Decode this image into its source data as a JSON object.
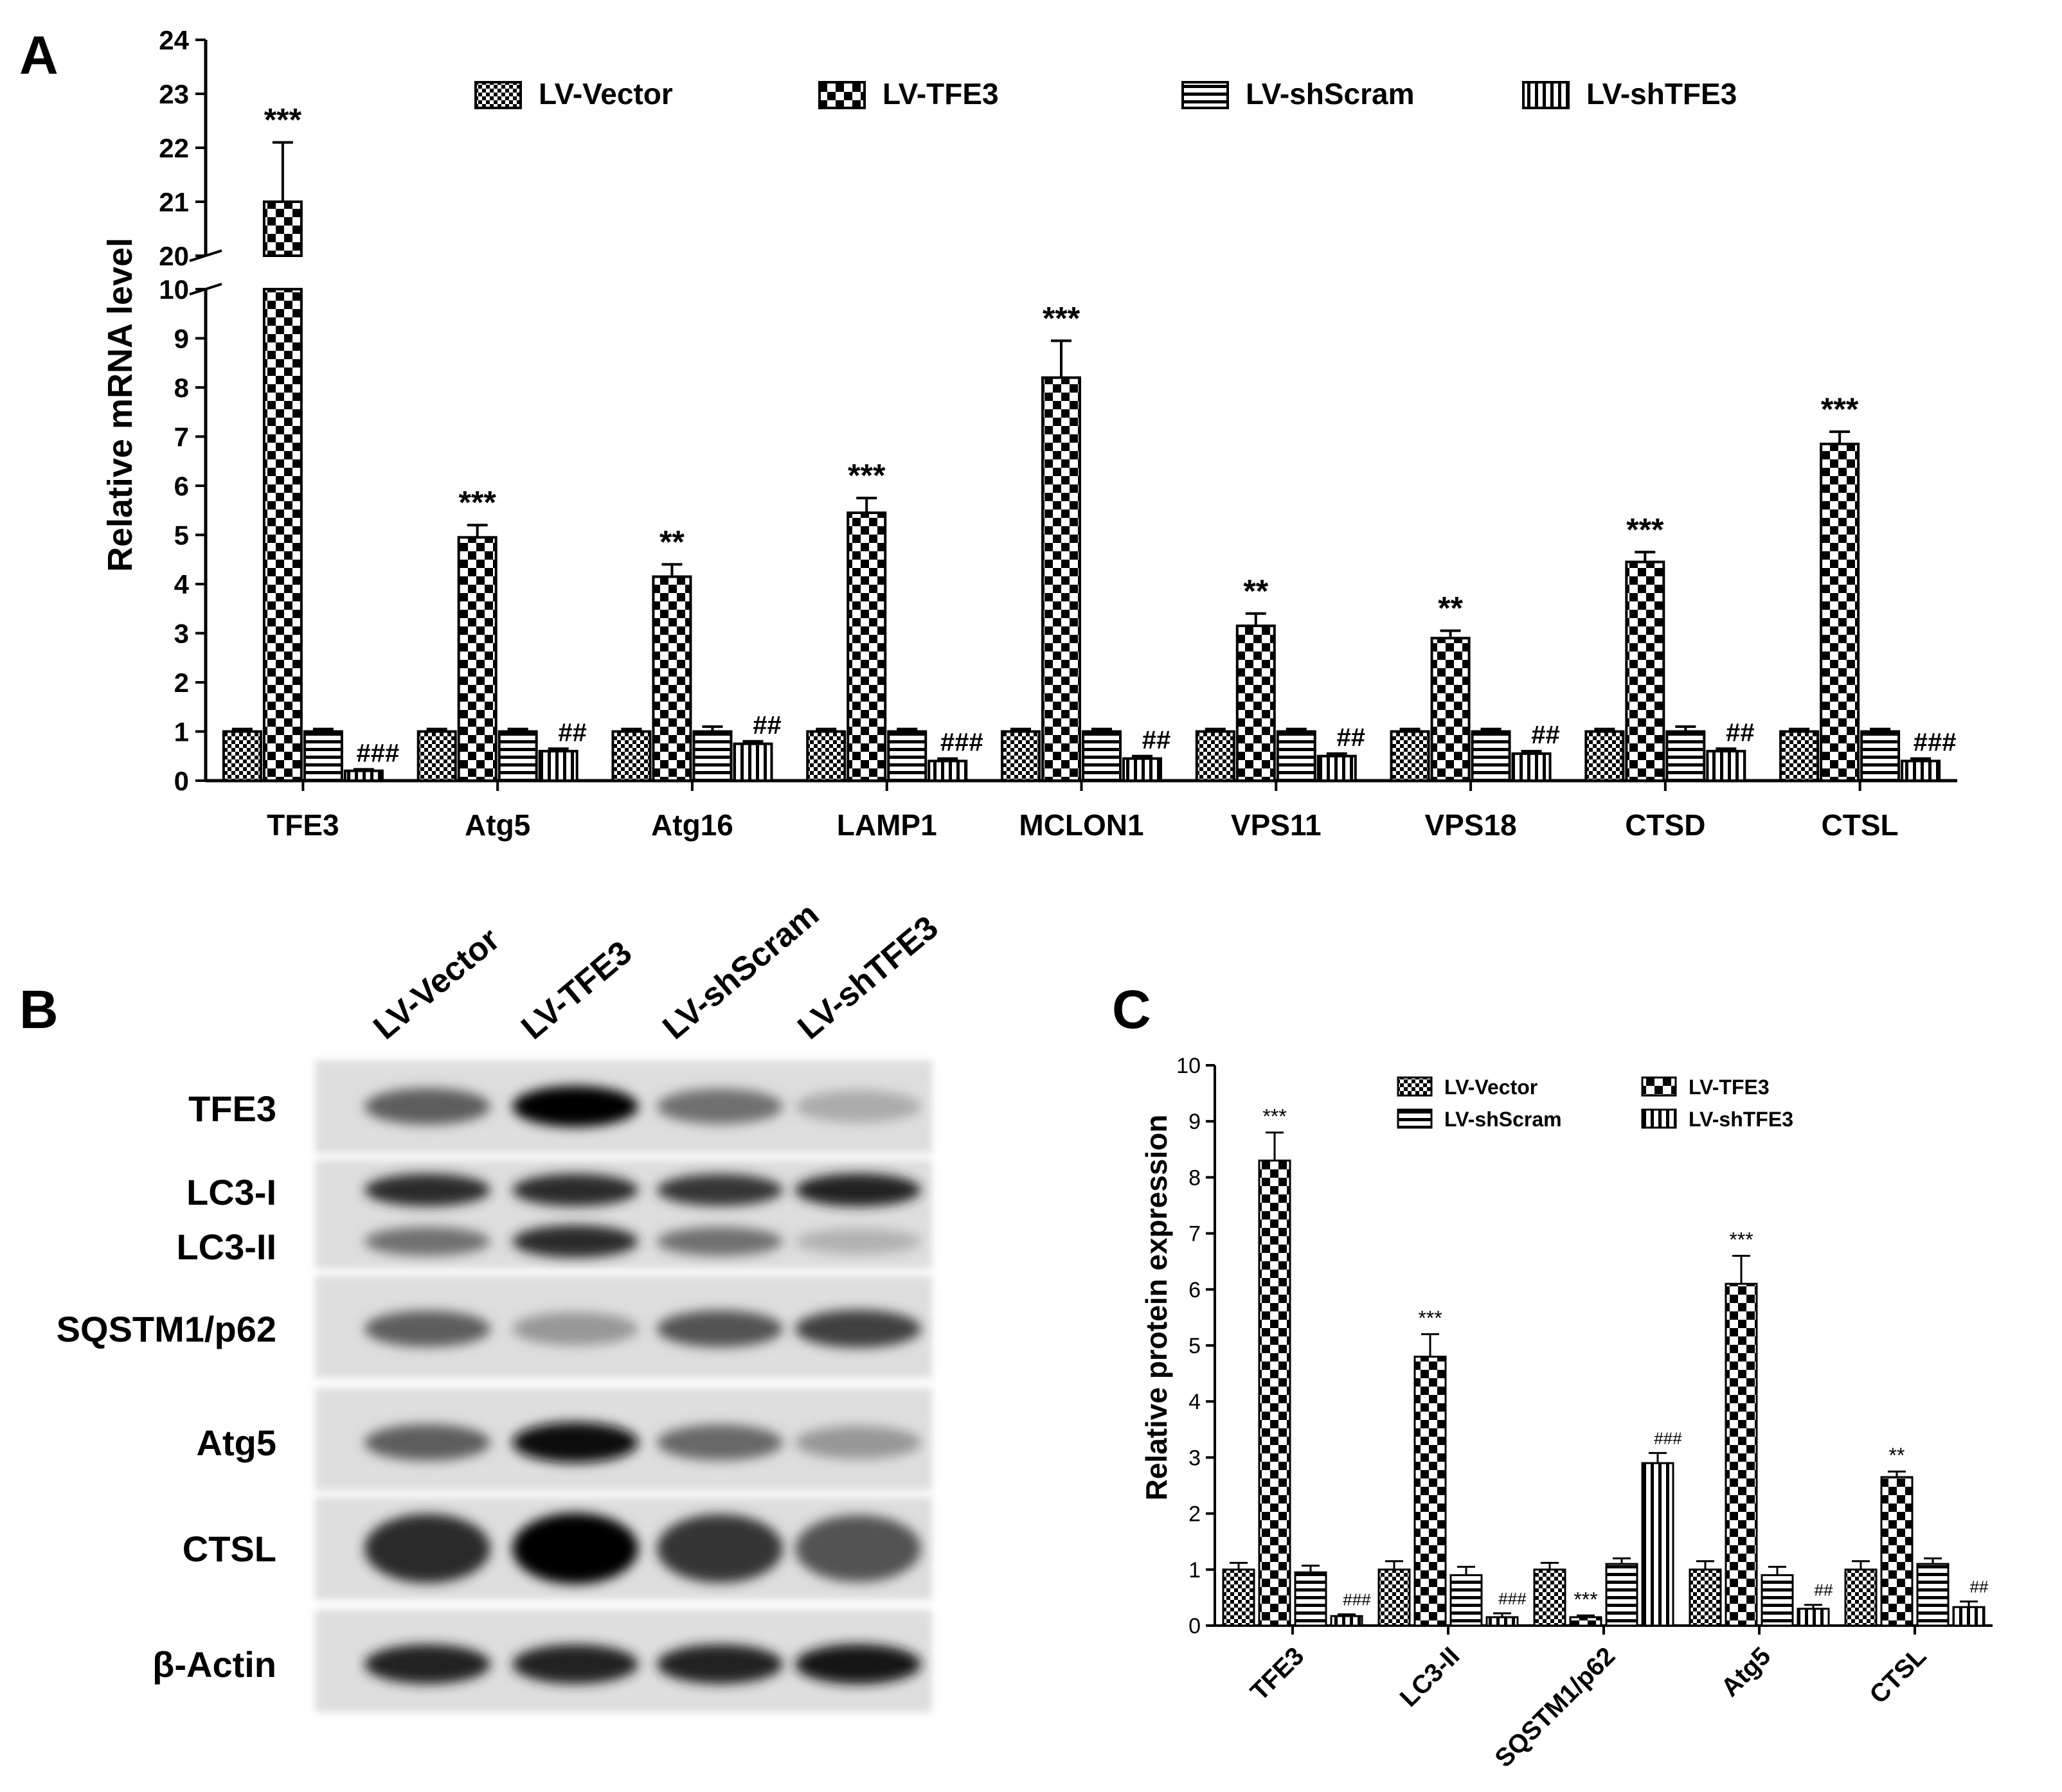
{
  "panels": {
    "a_label": "A",
    "b_label": "B",
    "c_label": "C"
  },
  "colors": {
    "ink": "#000000",
    "background": "#ffffff"
  },
  "chart_data": [
    {
      "id": "A",
      "type": "bar",
      "title": "",
      "xlabel": "",
      "ylabel": "Relative mRNA level",
      "y_axis_break": {
        "lower": [
          0,
          10
        ],
        "upper": [
          20,
          24
        ]
      },
      "categories": [
        "TFE3",
        "Atg5",
        "Atg16",
        "LAMP1",
        "MCLON1",
        "VPS11",
        "VPS18",
        "CTSD",
        "CTSL"
      ],
      "y_ticks": [
        "0",
        "1",
        "2",
        "3",
        "4",
        "5",
        "6",
        "7",
        "8",
        "9",
        "10",
        "20",
        "21",
        "22",
        "23",
        "24"
      ],
      "legend_position": "top",
      "series": [
        {
          "name": "LV-Vector",
          "pattern": "checker-fine",
          "values": [
            1.0,
            1.0,
            1.0,
            1.0,
            1.0,
            1.0,
            1.0,
            1.0,
            1.0
          ],
          "errors": [
            0.05,
            0.05,
            0.05,
            0.05,
            0.05,
            0.05,
            0.05,
            0.05,
            0.05
          ],
          "annotations": [
            "",
            "",
            "",
            "",
            "",
            "",
            "",
            "",
            ""
          ]
        },
        {
          "name": "LV-TFE3",
          "pattern": "checker-coarse",
          "values": [
            21.0,
            4.95,
            4.15,
            5.45,
            8.2,
            3.15,
            2.9,
            4.45,
            6.85
          ],
          "errors": [
            1.1,
            0.25,
            0.25,
            0.3,
            0.75,
            0.25,
            0.15,
            0.2,
            0.25
          ],
          "annotations": [
            "***",
            "***",
            "**",
            "***",
            "***",
            "**",
            "**",
            "***",
            "***"
          ]
        },
        {
          "name": "LV-shScram",
          "pattern": "horizontal",
          "values": [
            1.0,
            1.0,
            1.0,
            1.0,
            1.0,
            1.0,
            1.0,
            1.0,
            1.0
          ],
          "errors": [
            0.05,
            0.05,
            0.1,
            0.05,
            0.05,
            0.05,
            0.05,
            0.1,
            0.05
          ],
          "annotations": [
            "",
            "",
            "",
            "",
            "",
            "",
            "",
            "",
            ""
          ]
        },
        {
          "name": "LV-shTFE3",
          "pattern": "vertical",
          "values": [
            0.2,
            0.6,
            0.75,
            0.4,
            0.45,
            0.5,
            0.55,
            0.6,
            0.4
          ],
          "errors": [
            0.03,
            0.05,
            0.05,
            0.05,
            0.05,
            0.05,
            0.05,
            0.05,
            0.05
          ],
          "annotations": [
            "###",
            "##",
            "##",
            "###",
            "##",
            "##",
            "##",
            "##",
            "###"
          ]
        }
      ]
    },
    {
      "id": "C",
      "type": "bar",
      "title": "",
      "xlabel": "",
      "ylabel": "Relative protein expression",
      "ylim": [
        0,
        10
      ],
      "categories": [
        "TFE3",
        "LC3-II",
        "SQSTM1/p62",
        "Atg5",
        "CTSL"
      ],
      "y_ticks": [
        "0",
        "1",
        "2",
        "3",
        "4",
        "5",
        "6",
        "7",
        "8",
        "9",
        "10"
      ],
      "legend_position": "top",
      "series": [
        {
          "name": "LV-Vector",
          "pattern": "checker-fine",
          "values": [
            1.0,
            1.0,
            1.0,
            1.0,
            1.0
          ],
          "errors": [
            0.12,
            0.15,
            0.12,
            0.15,
            0.15
          ],
          "annotations": [
            "",
            "",
            "",
            "",
            ""
          ]
        },
        {
          "name": "LV-TFE3",
          "pattern": "checker-coarse",
          "values": [
            8.3,
            4.8,
            0.15,
            6.1,
            2.65
          ],
          "errors": [
            0.5,
            0.4,
            0.03,
            0.5,
            0.1
          ],
          "annotations": [
            "***",
            "***",
            "***",
            "***",
            "**"
          ]
        },
        {
          "name": "LV-shScram",
          "pattern": "horizontal",
          "values": [
            0.95,
            0.9,
            1.1,
            0.9,
            1.1
          ],
          "errors": [
            0.12,
            0.15,
            0.1,
            0.15,
            0.1
          ],
          "annotations": [
            "",
            "",
            "",
            "",
            ""
          ]
        },
        {
          "name": "LV-shTFE3",
          "pattern": "vertical",
          "values": [
            0.17,
            0.15,
            2.9,
            0.3,
            0.33
          ],
          "errors": [
            0.03,
            0.07,
            0.18,
            0.07,
            0.1
          ],
          "annotations": [
            "###",
            "###",
            "###",
            "##",
            "##"
          ]
        }
      ]
    }
  ],
  "western_blot": {
    "lanes": [
      "LV-Vector",
      "LV-TFE3",
      "LV-shScram",
      "LV-shTFE3"
    ],
    "rows": [
      {
        "label": "TFE3",
        "intensity": [
          0.55,
          1.0,
          0.45,
          0.15
        ]
      },
      {
        "label": "LC3-I",
        "intensity": [
          0.8,
          0.8,
          0.75,
          0.85
        ]
      },
      {
        "label": "LC3-II",
        "intensity": [
          0.45,
          0.8,
          0.45,
          0.12
        ]
      },
      {
        "label": "SQSTM1/p62",
        "intensity": [
          0.55,
          0.25,
          0.6,
          0.7
        ]
      },
      {
        "label": "Atg5",
        "intensity": [
          0.55,
          0.95,
          0.5,
          0.25
        ]
      },
      {
        "label": "CTSL",
        "intensity": [
          0.8,
          1.0,
          0.75,
          0.6
        ]
      },
      {
        "label": "β-Actin",
        "intensity": [
          0.85,
          0.85,
          0.85,
          0.9
        ]
      }
    ]
  }
}
